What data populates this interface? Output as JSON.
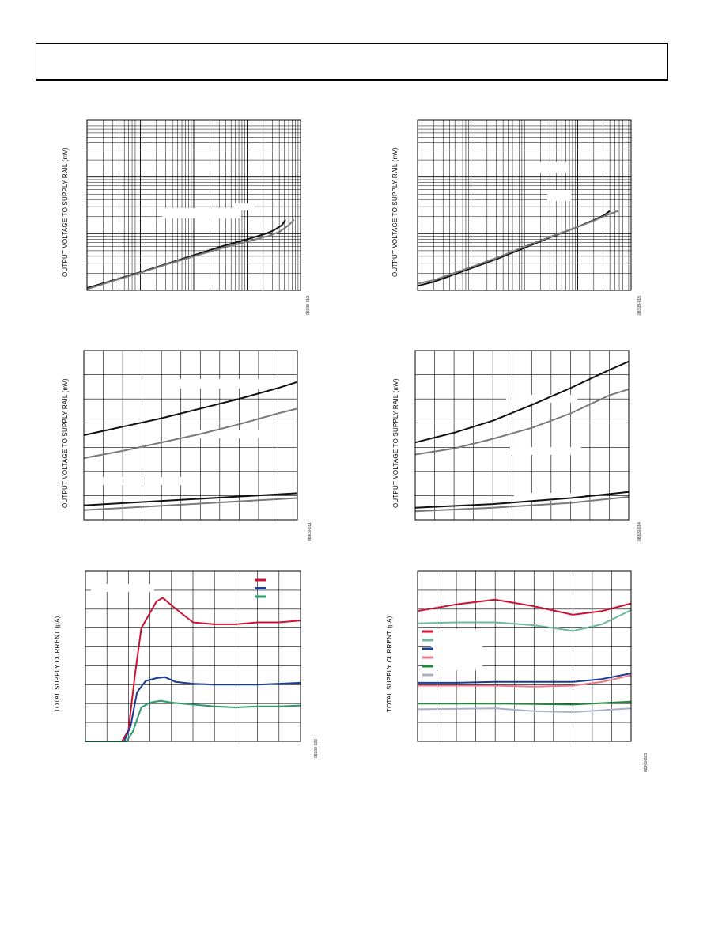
{
  "chart_data": [
    {
      "type": "line",
      "scale": "log-log",
      "ylabel": "OUTPUT VOLTAGE TO SUPPLY RAIL (mV)",
      "figure_id": "08309-010",
      "x_decades": 4,
      "y_decades": 3,
      "grid": true,
      "series": [
        {
          "color": "#111111",
          "points": [
            [
              0,
              0.04
            ],
            [
              0.5,
              0.18
            ],
            [
              1,
              0.32
            ],
            [
              1.5,
              0.47
            ],
            [
              2,
              0.62
            ],
            [
              2.5,
              0.77
            ],
            [
              3,
              0.9
            ],
            [
              3.35,
              1.0
            ],
            [
              3.5,
              1.06
            ],
            [
              3.65,
              1.15
            ],
            [
              3.72,
              1.25
            ]
          ]
        },
        {
          "color": "#7a7a7a",
          "points": [
            [
              0,
              0.02
            ],
            [
              0.5,
              0.17
            ],
            [
              1,
              0.31
            ],
            [
              1.5,
              0.46
            ],
            [
              2,
              0.6
            ],
            [
              2.5,
              0.74
            ],
            [
              3,
              0.86
            ],
            [
              3.4,
              0.96
            ],
            [
              3.6,
              1.03
            ],
            [
              3.78,
              1.15
            ],
            [
              3.88,
              1.25
            ]
          ]
        }
      ]
    },
    {
      "type": "line",
      "scale": "log-log",
      "ylabel": "OUTPUT VOLTAGE TO SUPPLY RAIL (mV)",
      "figure_id": "08309-013",
      "x_decades": 4,
      "y_decades": 3,
      "grid": true,
      "series": [
        {
          "color": "#111111",
          "points": [
            [
              0,
              0.08
            ],
            [
              0.3,
              0.15
            ],
            [
              0.8,
              0.32
            ],
            [
              1.5,
              0.56
            ],
            [
              2,
              0.75
            ],
            [
              2.5,
              0.94
            ],
            [
              3,
              1.12
            ],
            [
              3.3,
              1.24
            ],
            [
              3.5,
              1.33
            ],
            [
              3.6,
              1.4
            ]
          ]
        },
        {
          "color": "#7a7a7a",
          "points": [
            [
              0,
              0.12
            ],
            [
              0.3,
              0.18
            ],
            [
              0.8,
              0.34
            ],
            [
              1.5,
              0.58
            ],
            [
              2,
              0.77
            ],
            [
              2.5,
              0.95
            ],
            [
              3,
              1.12
            ],
            [
              3.3,
              1.23
            ],
            [
              3.55,
              1.33
            ],
            [
              3.75,
              1.4
            ]
          ]
        }
      ]
    },
    {
      "type": "line",
      "scale": "linear",
      "ylabel": "OUTPUT VOLTAGE TO SUPPLY RAIL (mV)",
      "figure_id": "08309-011",
      "xlim": [
        0,
        11
      ],
      "ylim": [
        0,
        7
      ],
      "grid": true,
      "series": [
        {
          "color": "#111111",
          "values": [
            [
              0,
              3.5
            ],
            [
              2,
              3.85
            ],
            [
              4,
              4.2
            ],
            [
              6,
              4.6
            ],
            [
              8,
              5.0
            ],
            [
              10,
              5.45
            ],
            [
              11,
              5.7
            ]
          ]
        },
        {
          "color": "#7a7a7a",
          "values": [
            [
              0,
              2.55
            ],
            [
              2,
              2.85
            ],
            [
              4,
              3.2
            ],
            [
              6,
              3.55
            ],
            [
              8,
              3.95
            ],
            [
              10,
              4.4
            ],
            [
              11,
              4.6
            ]
          ]
        },
        {
          "color": "#111111",
          "values": [
            [
              0,
              0.6
            ],
            [
              11,
              1.1
            ]
          ]
        },
        {
          "color": "#7a7a7a",
          "values": [
            [
              0,
              0.4
            ],
            [
              11,
              0.9
            ]
          ]
        }
      ]
    },
    {
      "type": "line",
      "scale": "linear",
      "ylabel": "OUTPUT VOLTAGE TO SUPPLY RAIL (mV)",
      "figure_id": "08309-014",
      "xlim": [
        0,
        11
      ],
      "ylim": [
        0,
        7
      ],
      "grid": true,
      "series": [
        {
          "color": "#111111",
          "values": [
            [
              0,
              3.2
            ],
            [
              2,
              3.6
            ],
            [
              4,
              4.1
            ],
            [
              6,
              4.75
            ],
            [
              8,
              5.45
            ],
            [
              10,
              6.2
            ],
            [
              11,
              6.55
            ]
          ]
        },
        {
          "color": "#7a7a7a",
          "values": [
            [
              0,
              2.7
            ],
            [
              2,
              2.95
            ],
            [
              4,
              3.35
            ],
            [
              6,
              3.8
            ],
            [
              8,
              4.4
            ],
            [
              10,
              5.15
            ],
            [
              11,
              5.4
            ]
          ]
        },
        {
          "color": "#111111",
          "values": [
            [
              0,
              0.5
            ],
            [
              4,
              0.65
            ],
            [
              8,
              0.9
            ],
            [
              11,
              1.15
            ]
          ]
        },
        {
          "color": "#7a7a7a",
          "values": [
            [
              0,
              0.35
            ],
            [
              4,
              0.5
            ],
            [
              8,
              0.7
            ],
            [
              11,
              0.95
            ]
          ]
        }
      ]
    },
    {
      "type": "line",
      "scale": "linear",
      "ylabel": "TOTAL SUPPLY CURRENT (µA)",
      "figure_id": "08309-022",
      "xlim": [
        0,
        10
      ],
      "ylim": [
        0,
        9
      ],
      "grid": true,
      "legend": "top-right",
      "legend_colors": [
        "#cc1133",
        "#1a3d8f",
        "#2b9a6a"
      ],
      "series": [
        {
          "color": "#cc1133",
          "values": [
            [
              0,
              0
            ],
            [
              1.7,
              0
            ],
            [
              2.0,
              0.6
            ],
            [
              2.3,
              3.5
            ],
            [
              2.6,
              6.0
            ],
            [
              3,
              6.8
            ],
            [
              3.3,
              7.4
            ],
            [
              3.6,
              7.6
            ],
            [
              4,
              7.2
            ],
            [
              5,
              6.3
            ],
            [
              6,
              6.2
            ],
            [
              7,
              6.2
            ],
            [
              8,
              6.3
            ],
            [
              9,
              6.3
            ],
            [
              10,
              6.4
            ]
          ]
        },
        {
          "color": "#1a3d8f",
          "values": [
            [
              0,
              0
            ],
            [
              1.8,
              0
            ],
            [
              2.1,
              0.8
            ],
            [
              2.4,
              2.6
            ],
            [
              2.8,
              3.2
            ],
            [
              3.3,
              3.35
            ],
            [
              3.7,
              3.4
            ],
            [
              4.2,
              3.15
            ],
            [
              5,
              3.05
            ],
            [
              6,
              3.0
            ],
            [
              7,
              3.0
            ],
            [
              8,
              3.0
            ],
            [
              9,
              3.05
            ],
            [
              10,
              3.1
            ]
          ]
        },
        {
          "color": "#2b9a6a",
          "values": [
            [
              0,
              0
            ],
            [
              1.9,
              0
            ],
            [
              2.2,
              0.5
            ],
            [
              2.6,
              1.8
            ],
            [
              3,
              2.05
            ],
            [
              3.5,
              2.15
            ],
            [
              4,
              2.05
            ],
            [
              5,
              1.95
            ],
            [
              6,
              1.85
            ],
            [
              7,
              1.8
            ],
            [
              8,
              1.85
            ],
            [
              9,
              1.85
            ],
            [
              10,
              1.9
            ]
          ]
        }
      ]
    },
    {
      "type": "line",
      "scale": "linear",
      "ylabel": "TOTAL SUPPLY CURRENT (µA)",
      "figure_id": "08309-023",
      "xlim": [
        0,
        11
      ],
      "ylim": [
        0,
        9
      ],
      "grid": true,
      "legend": "middle-left",
      "legend_colors": [
        "#cc1133",
        "#6fb9a0",
        "#1a3d8f",
        "#ee7788",
        "#1d8a3a",
        "#aab0c8"
      ],
      "series": [
        {
          "color": "#cc1133",
          "values": [
            [
              0,
              6.9
            ],
            [
              2,
              7.25
            ],
            [
              4,
              7.5
            ],
            [
              6,
              7.15
            ],
            [
              8,
              6.7
            ],
            [
              9.5,
              6.9
            ],
            [
              11,
              7.3
            ]
          ]
        },
        {
          "color": "#6fb9a0",
          "values": [
            [
              0,
              6.25
            ],
            [
              2,
              6.3
            ],
            [
              4,
              6.3
            ],
            [
              6,
              6.15
            ],
            [
              8,
              5.85
            ],
            [
              9.5,
              6.2
            ],
            [
              11,
              6.95
            ]
          ]
        },
        {
          "color": "#1a3d8f",
          "values": [
            [
              0,
              3.1
            ],
            [
              2,
              3.1
            ],
            [
              4,
              3.15
            ],
            [
              6,
              3.15
            ],
            [
              8,
              3.15
            ],
            [
              9.5,
              3.3
            ],
            [
              11,
              3.6
            ]
          ]
        },
        {
          "color": "#ee7788",
          "values": [
            [
              0,
              2.95
            ],
            [
              2,
              2.95
            ],
            [
              4,
              2.95
            ],
            [
              6,
              2.9
            ],
            [
              8,
              2.95
            ],
            [
              9.5,
              3.15
            ],
            [
              11,
              3.5
            ]
          ]
        },
        {
          "color": "#1d8a3a",
          "values": [
            [
              0,
              2.0
            ],
            [
              4,
              2.0
            ],
            [
              8,
              1.95
            ],
            [
              11,
              2.1
            ]
          ]
        },
        {
          "color": "#aab0c8",
          "values": [
            [
              0,
              1.7
            ],
            [
              4,
              1.75
            ],
            [
              6,
              1.6
            ],
            [
              8,
              1.55
            ],
            [
              11,
              1.75
            ]
          ]
        }
      ]
    }
  ]
}
